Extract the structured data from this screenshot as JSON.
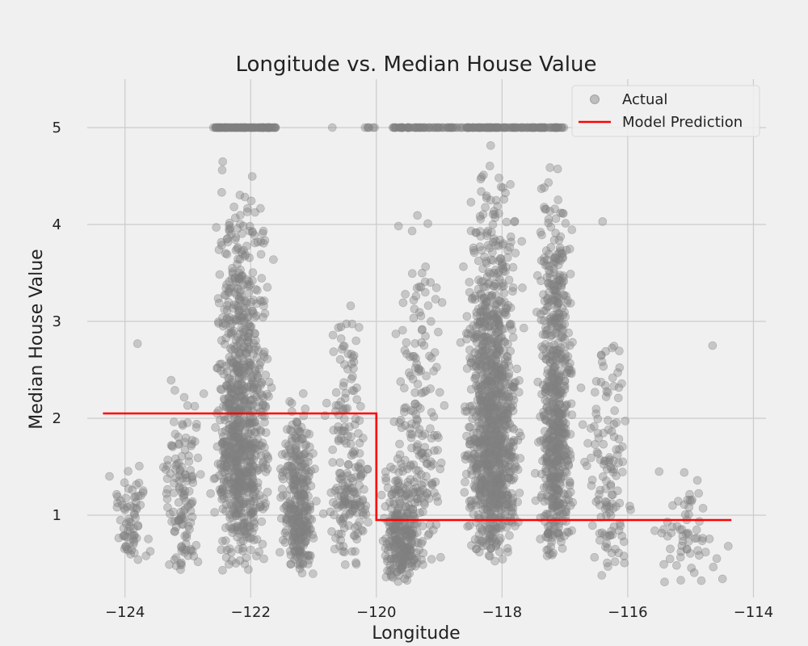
{
  "chart_data": {
    "type": "scatter",
    "title": "Longitude vs. Median House Value",
    "xlabel": "Longitude",
    "ylabel": "Median House Value",
    "xlim": [
      -124.6,
      -113.8
    ],
    "ylim": [
      0.15,
      5.5
    ],
    "xticks": [
      -124,
      -122,
      -120,
      -118,
      -116,
      -114
    ],
    "xtick_labels": [
      "−124",
      "−122",
      "−120",
      "−118",
      "−116",
      "−114"
    ],
    "yticks": [
      1,
      2,
      3,
      4,
      5
    ],
    "ytick_labels": [
      "1",
      "2",
      "3",
      "4",
      "5"
    ],
    "grid": true,
    "legend_placement": "top-right",
    "series": [
      {
        "name": "Actual",
        "kind": "scatter",
        "color": "#808080",
        "clusters": [
          {
            "x_range": [
              -124.3,
              -123.5
            ],
            "y_range": [
              0.5,
              1.7
            ],
            "count": 70
          },
          {
            "x_range": [
              -123.5,
              -122.7
            ],
            "y_range": [
              0.3,
              2.9
            ],
            "count": 130
          },
          {
            "x_range": [
              -122.7,
              -121.6
            ],
            "y_range": [
              0.4,
              4.99
            ],
            "count": 900
          },
          {
            "x_range": [
              -121.6,
              -120.9
            ],
            "y_range": [
              0.3,
              2.5
            ],
            "count": 320
          },
          {
            "x_range": [
              -120.9,
              -120.0
            ],
            "y_range": [
              0.35,
              3.5
            ],
            "count": 200
          },
          {
            "x_range": [
              -120.0,
              -119.2
            ],
            "y_range": [
              0.25,
              1.8
            ],
            "count": 280
          },
          {
            "x_range": [
              -119.8,
              -118.8
            ],
            "y_range": [
              0.4,
              4.6
            ],
            "count": 180
          },
          {
            "x_range": [
              -118.7,
              -117.6
            ],
            "y_range": [
              0.45,
              4.99
            ],
            "count": 1100
          },
          {
            "x_range": [
              -117.5,
              -116.8
            ],
            "y_range": [
              0.45,
              4.99
            ],
            "count": 650
          },
          {
            "x_range": [
              -116.8,
              -115.8
            ],
            "y_range": [
              0.3,
              3.5
            ],
            "count": 130
          },
          {
            "x_range": [
              -115.7,
              -114.4
            ],
            "y_range": [
              0.25,
              1.6
            ],
            "count": 60
          }
        ],
        "capped_points": [
          {
            "x_range": [
              -122.6,
              -121.6
            ],
            "y": 5.0,
            "count": 110
          },
          {
            "x_range": [
              -120.2,
              -120.0
            ],
            "y": 5.0,
            "count": 6
          },
          {
            "x_range": [
              -119.75,
              -117.0
            ],
            "y": 5.0,
            "count": 200
          }
        ],
        "outliers": [
          {
            "x": -114.65,
            "y": 2.75
          },
          {
            "x": -114.4,
            "y": 0.68
          },
          {
            "x": -115.5,
            "y": 1.45
          },
          {
            "x": -116.4,
            "y": 4.03
          },
          {
            "x": -120.7,
            "y": 5.0
          },
          {
            "x": -123.8,
            "y": 2.77
          }
        ]
      },
      {
        "name": "Model Prediction",
        "kind": "step-line",
        "color": "#ff0000",
        "x": [
          -124.35,
          -120.0,
          -120.0,
          -114.35
        ],
        "y": [
          2.05,
          2.05,
          0.95,
          0.95
        ]
      }
    ]
  }
}
